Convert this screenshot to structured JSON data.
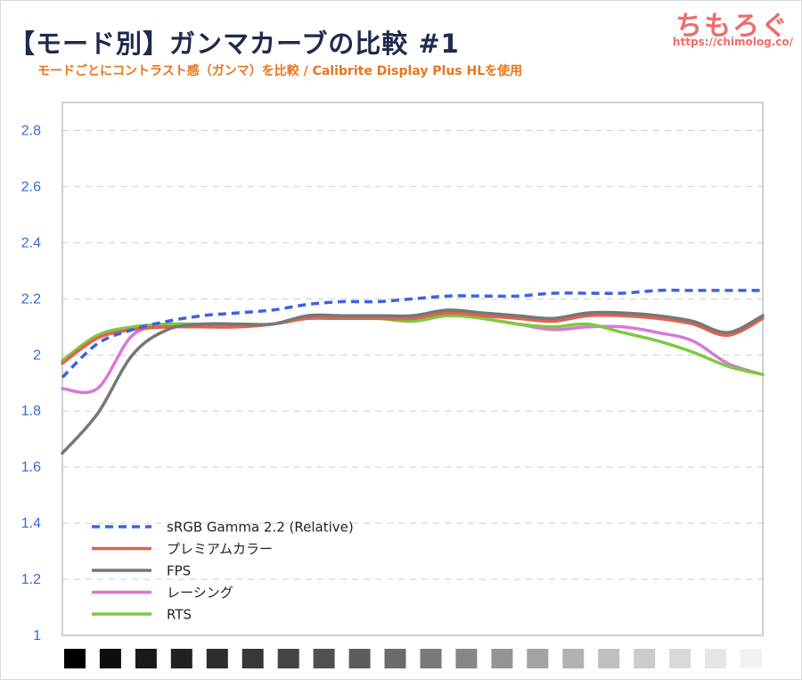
{
  "header": {
    "title": "【モード別】ガンマカーブの比較 #1",
    "subtitle": "モードごとにコントラスト感（ガンマ）を比較 / Calibrite Display Plus HLを使用",
    "brand_name": "ちもろぐ",
    "brand_url": "https://chimolog.co/"
  },
  "chart_data": {
    "type": "line",
    "title": "【モード別】ガンマカーブの比較 #1",
    "subtitle": "モードごとにコントラスト感（ガンマ）を比較 / Calibrite Display Plus HLを使用",
    "xlabel": "",
    "ylabel": "",
    "x": [
      0,
      5,
      10,
      15,
      20,
      25,
      30,
      35,
      40,
      45,
      50,
      55,
      60,
      65,
      70,
      75,
      80,
      85,
      90,
      95,
      100
    ],
    "ylim": [
      1,
      2.9
    ],
    "yticks": [
      {
        "value": 1,
        "label": "1"
      },
      {
        "value": 1.2,
        "label": "1.2"
      },
      {
        "value": 1.4,
        "label": "1.4"
      },
      {
        "value": 1.6,
        "label": "1.6"
      },
      {
        "value": 1.8,
        "label": "1.8"
      },
      {
        "value": 2,
        "label": "2"
      },
      {
        "value": 2.2,
        "label": "2.2"
      },
      {
        "value": 2.4,
        "label": "2.4"
      },
      {
        "value": 2.6,
        "label": "2.6"
      },
      {
        "value": 2.8,
        "label": "2.8"
      }
    ],
    "grid": "horizontal-dashed",
    "legend_position": "bottom-left",
    "series": [
      {
        "name": "sRGB Gamma 2.2 (Relative)",
        "color": "#3b63e0",
        "dashed": true,
        "values": [
          1.92,
          2.04,
          2.09,
          2.12,
          2.14,
          2.15,
          2.16,
          2.18,
          2.19,
          2.19,
          2.2,
          2.21,
          2.21,
          2.21,
          2.22,
          2.22,
          2.22,
          2.23,
          2.23,
          2.23,
          2.23
        ]
      },
      {
        "name": "プレミアムカラー",
        "color": "#e0634f",
        "dashed": false,
        "values": [
          1.97,
          2.06,
          2.09,
          2.1,
          2.1,
          2.1,
          2.11,
          2.13,
          2.13,
          2.13,
          2.13,
          2.15,
          2.14,
          2.13,
          2.12,
          2.14,
          2.14,
          2.13,
          2.11,
          2.07,
          2.13
        ]
      },
      {
        "name": "FPS",
        "color": "#777777",
        "dashed": false,
        "values": [
          1.65,
          1.79,
          2.0,
          2.09,
          2.11,
          2.11,
          2.11,
          2.14,
          2.14,
          2.14,
          2.14,
          2.16,
          2.15,
          2.14,
          2.13,
          2.15,
          2.15,
          2.14,
          2.12,
          2.08,
          2.14
        ]
      },
      {
        "name": "レーシング",
        "color": "#d977d9",
        "dashed": false,
        "values": [
          1.88,
          1.88,
          2.07,
          2.1,
          2.1,
          2.1,
          2.11,
          2.13,
          2.13,
          2.13,
          2.13,
          2.15,
          2.13,
          2.11,
          2.09,
          2.1,
          2.1,
          2.08,
          2.05,
          1.97,
          1.93
        ]
      },
      {
        "name": "RTS",
        "color": "#7cc940",
        "dashed": false,
        "values": [
          1.98,
          2.07,
          2.1,
          2.11,
          2.11,
          2.11,
          2.11,
          2.13,
          2.13,
          2.13,
          2.12,
          2.14,
          2.13,
          2.11,
          2.1,
          2.11,
          2.08,
          2.05,
          2.01,
          1.96,
          1.93
        ]
      }
    ],
    "grayscale_swatches": [
      "#000000",
      "#0d0d0d",
      "#191919",
      "#222222",
      "#2d2d2d",
      "#383838",
      "#444444",
      "#505050",
      "#5d5d5d",
      "#6b6b6b",
      "#797979",
      "#878787",
      "#959595",
      "#a3a3a3",
      "#b1b1b1",
      "#bfbfbf",
      "#cccccc",
      "#d9d9d9",
      "#e6e6e6",
      "#f2f2f2"
    ]
  }
}
